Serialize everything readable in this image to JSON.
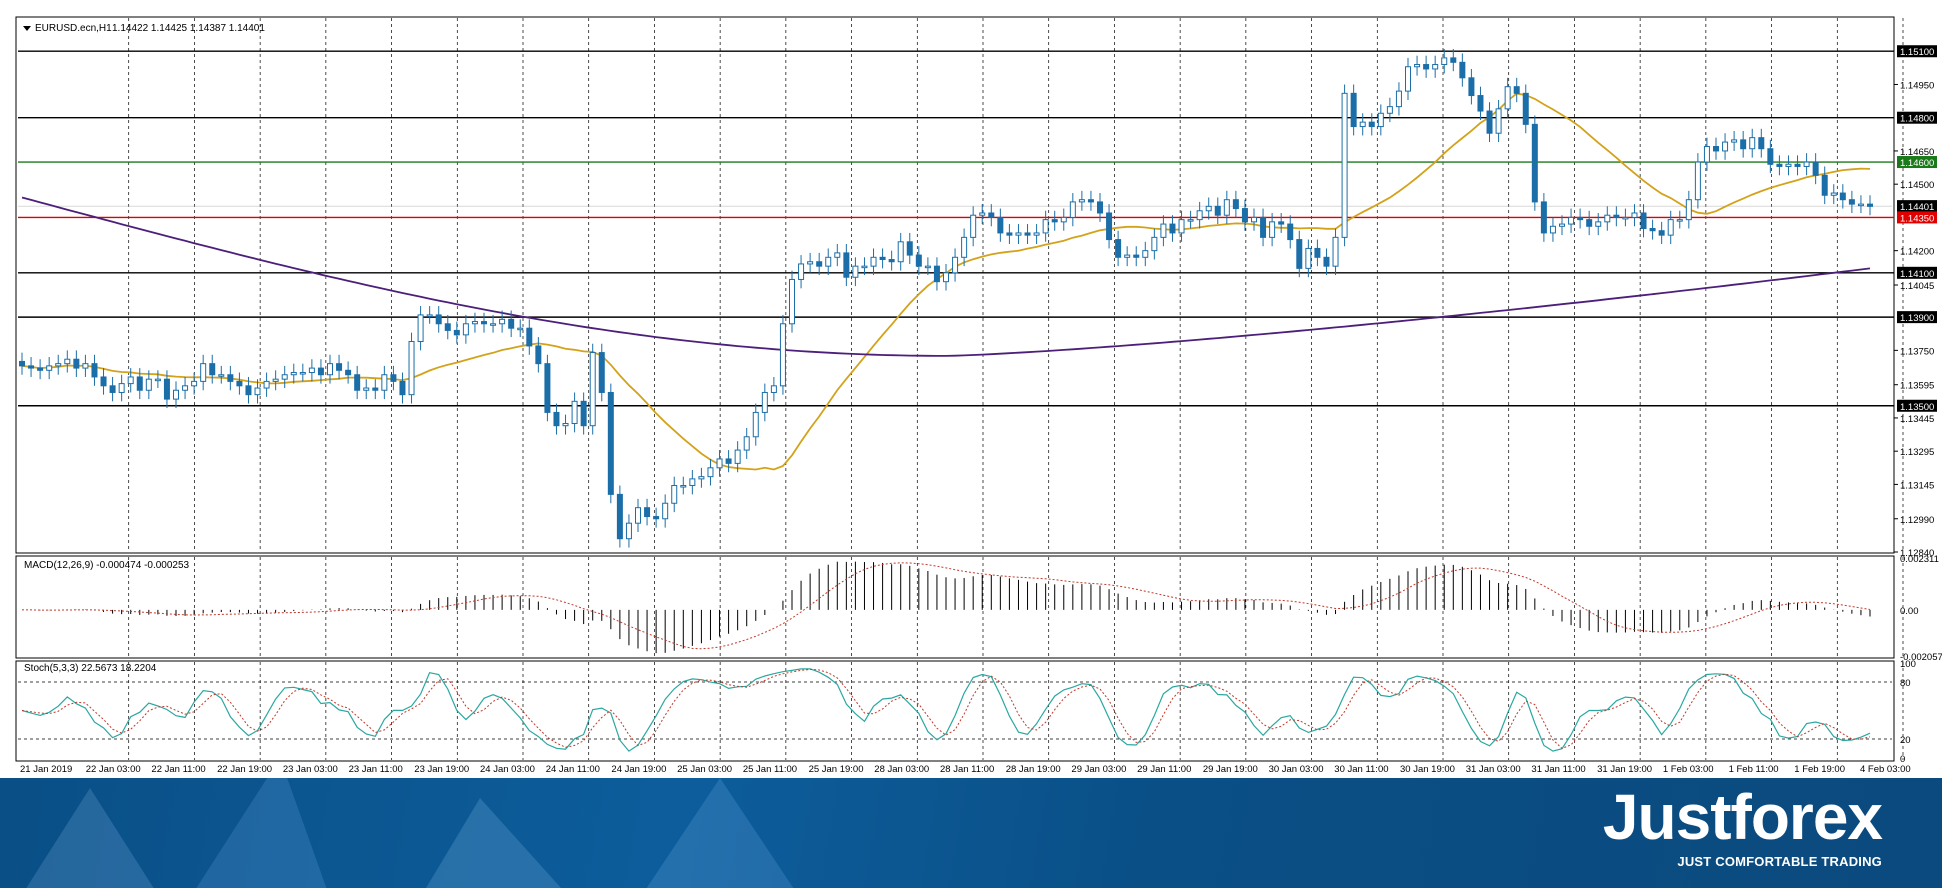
{
  "chart_data": [
    {
      "type": "candlestick",
      "title": "EURUSD.ecn,H1",
      "ohlc_readout": "1.14422 1.14425 1.14387 1.14401",
      "ylim": [
        1.1284,
        1.1525
      ],
      "y_ticks": [
        "1.15100",
        "1.14950",
        "1.14800",
        "1.14650",
        "1.14600",
        "1.14500",
        "1.14401",
        "1.14350",
        "1.14200",
        "1.14100",
        "1.14045",
        "1.13900",
        "1.13750",
        "1.13595",
        "1.13500",
        "1.13445",
        "1.13295",
        "1.13145",
        "1.12990",
        "1.12840"
      ],
      "x_ticks": [
        "21 Jan 2019",
        "22 Jan 03:00",
        "22 Jan 11:00",
        "22 Jan 19:00",
        "23 Jan 03:00",
        "23 Jan 11:00",
        "23 Jan 19:00",
        "24 Jan 03:00",
        "24 Jan 11:00",
        "24 Jan 19:00",
        "25 Jan 03:00",
        "25 Jan 11:00",
        "25 Jan 19:00",
        "28 Jan 03:00",
        "28 Jan 11:00",
        "28 Jan 19:00",
        "29 Jan 03:00",
        "29 Jan 11:00",
        "29 Jan 19:00",
        "30 Jan 03:00",
        "30 Jan 11:00",
        "30 Jan 19:00",
        "31 Jan 03:00",
        "31 Jan 11:00",
        "31 Jan 19:00",
        "1 Feb 03:00",
        "1 Feb 11:00",
        "1 Feb 19:00",
        "4 Feb 03:00"
      ],
      "horizontal_levels": [
        {
          "price": 1.151,
          "label": "1.15100",
          "color": "#000000"
        },
        {
          "price": 1.148,
          "label": "1.14800",
          "color": "#000000"
        },
        {
          "price": 1.146,
          "label": "1.14600",
          "color": "#1a7a1a"
        },
        {
          "price": 1.1435,
          "label": "1.14350",
          "color": "#e00000"
        },
        {
          "price": 1.141,
          "label": "1.14100",
          "color": "#000000"
        },
        {
          "price": 1.139,
          "label": "1.13900",
          "color": "#000000"
        },
        {
          "price": 1.135,
          "label": "1.13500",
          "color": "#000000"
        }
      ],
      "current_price": {
        "price": 1.14401,
        "label": "1.14401"
      },
      "candle_closes": [
        1.1368,
        1.1367,
        1.1366,
        1.1368,
        1.1369,
        1.1371,
        1.1367,
        1.1369,
        1.1363,
        1.1359,
        1.1356,
        1.136,
        1.1363,
        1.1357,
        1.1362,
        1.1362,
        1.1353,
        1.1357,
        1.1359,
        1.1361,
        1.1369,
        1.1364,
        1.1364,
        1.1361,
        1.1359,
        1.1355,
        1.1358,
        1.1361,
        1.1362,
        1.1364,
        1.1365,
        1.1365,
        1.1367,
        1.1364,
        1.1369,
        1.1366,
        1.1364,
        1.1357,
        1.1358,
        1.1357,
        1.1364,
        1.1361,
        1.1355,
        1.1379,
        1.1391,
        1.1391,
        1.1387,
        1.1384,
        1.1382,
        1.1387,
        1.1388,
        1.1387,
        1.1387,
        1.1389,
        1.1385,
        1.1385,
        1.1377,
        1.1369,
        1.1347,
        1.1341,
        1.1342,
        1.1352,
        1.1341,
        1.1374,
        1.1356,
        1.131,
        1.129,
        1.1297,
        1.1304,
        1.13,
        1.1299,
        1.1306,
        1.1314,
        1.1314,
        1.1317,
        1.1318,
        1.1322,
        1.1326,
        1.1324,
        1.133,
        1.1336,
        1.1347,
        1.1356,
        1.1359,
        1.1387,
        1.1407,
        1.1414,
        1.1415,
        1.1413,
        1.1417,
        1.1419,
        1.1408,
        1.1413,
        1.1413,
        1.1417,
        1.1416,
        1.1415,
        1.1424,
        1.1418,
        1.1413,
        1.1413,
        1.1406,
        1.141,
        1.1417,
        1.1426,
        1.1436,
        1.1437,
        1.1435,
        1.1428,
        1.1427,
        1.1428,
        1.1427,
        1.1428,
        1.1434,
        1.1433,
        1.1435,
        1.1442,
        1.1443,
        1.1442,
        1.1437,
        1.1425,
        1.1417,
        1.1418,
        1.1417,
        1.142,
        1.1426,
        1.1432,
        1.1428,
        1.1434,
        1.1434,
        1.1438,
        1.144,
        1.1436,
        1.1443,
        1.1439,
        1.1433,
        1.1435,
        1.1426,
        1.1433,
        1.1432,
        1.1425,
        1.1412,
        1.1421,
        1.1417,
        1.1413,
        1.1426,
        1.1491,
        1.1476,
        1.1478,
        1.1476,
        1.1482,
        1.1485,
        1.1492,
        1.1503,
        1.1504,
        1.1502,
        1.1504,
        1.1507,
        1.1505,
        1.1498,
        1.149,
        1.1483,
        1.1473,
        1.1484,
        1.1494,
        1.1491,
        1.1477,
        1.1442,
        1.1428,
        1.1431,
        1.1432,
        1.1435,
        1.1434,
        1.1431,
        1.1433,
        1.1436,
        1.1435,
        1.1435,
        1.1437,
        1.143,
        1.1429,
        1.1427,
        1.1434,
        1.1434,
        1.1443,
        1.146,
        1.1467,
        1.1465,
        1.1469,
        1.147,
        1.1466,
        1.1471,
        1.1466,
        1.1459,
        1.1458,
        1.1459,
        1.1458,
        1.146,
        1.1454,
        1.1445,
        1.1446,
        1.1443,
        1.1441,
        1.1441,
        1.144
      ],
      "indicator_lines": [
        "MA fast (gold)",
        "MA slow (purple)"
      ],
      "x": [
        2019.0
      ]
    },
    {
      "type": "bar",
      "title": "MACD(12,26,9) -0.000474 -0.000253",
      "y_ticks": [
        "0.002311",
        "0.00",
        "-0.002057"
      ],
      "ylim": [
        -0.002057,
        0.002311
      ]
    },
    {
      "type": "line",
      "title": "Stoch(5,3,3) 22.5673 18.2204",
      "y_ticks": [
        "100",
        "80",
        "20",
        "0"
      ],
      "ylim": [
        0,
        100
      ]
    }
  ],
  "brand": {
    "name": "Justforex",
    "tagline": "JUST COMFORTABLE TRADING"
  },
  "colors": {
    "bull": "#ffffff",
    "bear": "#1b6ea8",
    "ma_fast": "#d4a21a",
    "ma_slow": "#4b1f7a",
    "signal": "#c0392b",
    "stoch_main": "#2aa8a0"
  }
}
